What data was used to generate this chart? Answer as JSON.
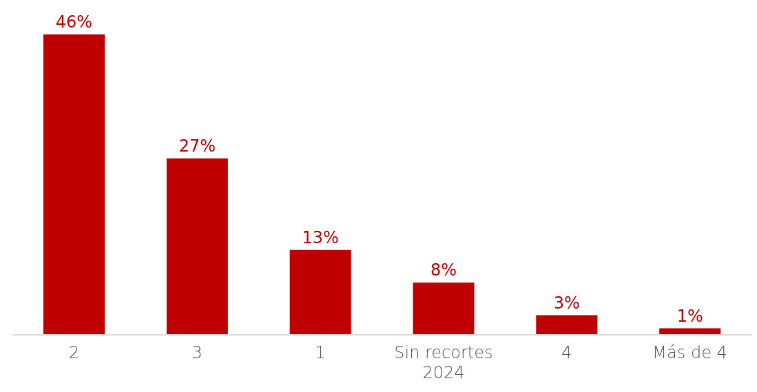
{
  "chart_data": {
    "type": "bar",
    "categories": [
      "2",
      "3",
      "1",
      "Sin recortes 2024",
      "4",
      "Más de 4"
    ],
    "values": [
      46,
      27,
      13,
      8,
      3,
      1
    ],
    "color": "#c00000",
    "value_labels": [
      "46%",
      "27%",
      "13%",
      "8%",
      "3%",
      "1%"
    ],
    "ylim": [
      0,
      46
    ],
    "tick_labels": "x",
    "grid": false,
    "legend": false
  }
}
